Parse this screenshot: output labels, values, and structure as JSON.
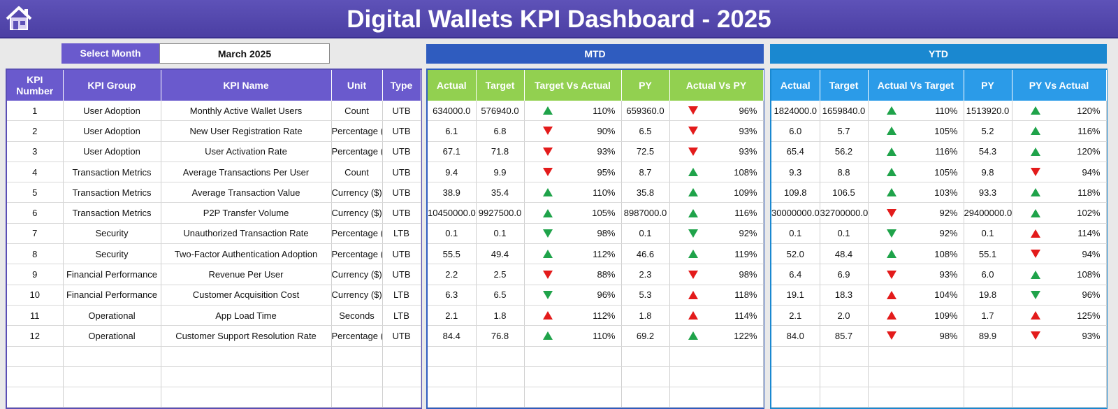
{
  "header": {
    "title": "Digital Wallets KPI Dashboard - 2025"
  },
  "selector": {
    "label": "Select Month",
    "value": "March 2025"
  },
  "sections": {
    "mtd": "MTD",
    "ytd": "YTD"
  },
  "kpi_table": {
    "columns": [
      "KPI Number",
      "KPI Group",
      "KPI Name",
      "Unit",
      "Type"
    ],
    "rows": [
      [
        1,
        "User Adoption",
        "Monthly Active Wallet Users",
        "Count",
        "UTB"
      ],
      [
        2,
        "User Adoption",
        "New User Registration Rate",
        "Percentage (%)",
        "UTB"
      ],
      [
        3,
        "User Adoption",
        "User Activation Rate",
        "Percentage (%)",
        "UTB"
      ],
      [
        4,
        "Transaction Metrics",
        "Average Transactions Per User",
        "Count",
        "UTB"
      ],
      [
        5,
        "Transaction Metrics",
        "Average Transaction Value",
        "Currency ($)",
        "UTB"
      ],
      [
        6,
        "Transaction Metrics",
        "P2P Transfer Volume",
        "Currency ($)",
        "UTB"
      ],
      [
        7,
        "Security",
        "Unauthorized Transaction Rate",
        "Percentage (%)",
        "LTB"
      ],
      [
        8,
        "Security",
        "Two-Factor Authentication Adoption",
        "Percentage (%)",
        "UTB"
      ],
      [
        9,
        "Financial Performance",
        "Revenue Per User",
        "Currency ($)",
        "UTB"
      ],
      [
        10,
        "Financial Performance",
        "Customer Acquisition Cost",
        "Currency ($)",
        "LTB"
      ],
      [
        11,
        "Operational",
        "App Load Time",
        "Seconds",
        "LTB"
      ],
      [
        12,
        "Operational",
        "Customer Support Resolution Rate",
        "Percentage (%)",
        "UTB"
      ]
    ]
  },
  "mtd_table": {
    "columns": [
      "Actual",
      "Target",
      "Target Vs Actual",
      "PY",
      "Actual Vs PY"
    ],
    "rows": [
      [
        "634000.0",
        "576940.0",
        {
          "arrow": "up",
          "color": "#1fa34a",
          "label": "110%"
        },
        "659360.0",
        {
          "arrow": "down",
          "color": "#e31b1b",
          "label": "96%"
        }
      ],
      [
        "6.1",
        "6.8",
        {
          "arrow": "down",
          "color": "#e31b1b",
          "label": "90%"
        },
        "6.5",
        {
          "arrow": "down",
          "color": "#e31b1b",
          "label": "93%"
        }
      ],
      [
        "67.1",
        "71.8",
        {
          "arrow": "down",
          "color": "#e31b1b",
          "label": "93%"
        },
        "72.5",
        {
          "arrow": "down",
          "color": "#e31b1b",
          "label": "93%"
        }
      ],
      [
        "9.4",
        "9.9",
        {
          "arrow": "down",
          "color": "#e31b1b",
          "label": "95%"
        },
        "8.7",
        {
          "arrow": "up",
          "color": "#1fa34a",
          "label": "108%"
        }
      ],
      [
        "38.9",
        "35.4",
        {
          "arrow": "up",
          "color": "#1fa34a",
          "label": "110%"
        },
        "35.8",
        {
          "arrow": "up",
          "color": "#1fa34a",
          "label": "109%"
        }
      ],
      [
        "10450000.0",
        "9927500.0",
        {
          "arrow": "up",
          "color": "#1fa34a",
          "label": "105%"
        },
        "8987000.0",
        {
          "arrow": "up",
          "color": "#1fa34a",
          "label": "116%"
        }
      ],
      [
        "0.1",
        "0.1",
        {
          "arrow": "down",
          "color": "#1fa34a",
          "label": "98%"
        },
        "0.1",
        {
          "arrow": "down",
          "color": "#1fa34a",
          "label": "92%"
        }
      ],
      [
        "55.5",
        "49.4",
        {
          "arrow": "up",
          "color": "#1fa34a",
          "label": "112%"
        },
        "46.6",
        {
          "arrow": "up",
          "color": "#1fa34a",
          "label": "119%"
        }
      ],
      [
        "2.2",
        "2.5",
        {
          "arrow": "down",
          "color": "#e31b1b",
          "label": "88%"
        },
        "2.3",
        {
          "arrow": "down",
          "color": "#e31b1b",
          "label": "98%"
        }
      ],
      [
        "6.3",
        "6.5",
        {
          "arrow": "down",
          "color": "#1fa34a",
          "label": "96%"
        },
        "5.3",
        {
          "arrow": "up",
          "color": "#e31b1b",
          "label": "118%"
        }
      ],
      [
        "2.1",
        "1.8",
        {
          "arrow": "up",
          "color": "#e31b1b",
          "label": "112%"
        },
        "1.8",
        {
          "arrow": "up",
          "color": "#e31b1b",
          "label": "114%"
        }
      ],
      [
        "84.4",
        "76.8",
        {
          "arrow": "up",
          "color": "#1fa34a",
          "label": "110%"
        },
        "69.2",
        {
          "arrow": "up",
          "color": "#1fa34a",
          "label": "122%"
        }
      ]
    ]
  },
  "ytd_table": {
    "columns": [
      "Actual",
      "Target",
      "Actual Vs Target",
      "PY",
      "PY Vs Actual"
    ],
    "rows": [
      [
        "1824000.0",
        "1659840.0",
        {
          "arrow": "up",
          "color": "#1fa34a",
          "label": "110%"
        },
        "1513920.0",
        {
          "arrow": "up",
          "color": "#1fa34a",
          "label": "120%"
        }
      ],
      [
        "6.0",
        "5.7",
        {
          "arrow": "up",
          "color": "#1fa34a",
          "label": "105%"
        },
        "5.2",
        {
          "arrow": "up",
          "color": "#1fa34a",
          "label": "116%"
        }
      ],
      [
        "65.4",
        "56.2",
        {
          "arrow": "up",
          "color": "#1fa34a",
          "label": "116%"
        },
        "54.3",
        {
          "arrow": "up",
          "color": "#1fa34a",
          "label": "120%"
        }
      ],
      [
        "9.3",
        "8.8",
        {
          "arrow": "up",
          "color": "#1fa34a",
          "label": "105%"
        },
        "9.8",
        {
          "arrow": "down",
          "color": "#e31b1b",
          "label": "94%"
        }
      ],
      [
        "109.8",
        "106.5",
        {
          "arrow": "up",
          "color": "#1fa34a",
          "label": "103%"
        },
        "93.3",
        {
          "arrow": "up",
          "color": "#1fa34a",
          "label": "118%"
        }
      ],
      [
        "30000000.0",
        "32700000.0",
        {
          "arrow": "down",
          "color": "#e31b1b",
          "label": "92%"
        },
        "29400000.0",
        {
          "arrow": "up",
          "color": "#1fa34a",
          "label": "102%"
        }
      ],
      [
        "0.1",
        "0.1",
        {
          "arrow": "down",
          "color": "#1fa34a",
          "label": "92%"
        },
        "0.1",
        {
          "arrow": "up",
          "color": "#e31b1b",
          "label": "114%"
        }
      ],
      [
        "52.0",
        "48.4",
        {
          "arrow": "up",
          "color": "#1fa34a",
          "label": "108%"
        },
        "55.1",
        {
          "arrow": "down",
          "color": "#e31b1b",
          "label": "94%"
        }
      ],
      [
        "6.4",
        "6.9",
        {
          "arrow": "down",
          "color": "#e31b1b",
          "label": "93%"
        },
        "6.0",
        {
          "arrow": "up",
          "color": "#1fa34a",
          "label": "108%"
        }
      ],
      [
        "19.1",
        "18.3",
        {
          "arrow": "up",
          "color": "#e31b1b",
          "label": "104%"
        },
        "19.8",
        {
          "arrow": "down",
          "color": "#1fa34a",
          "label": "96%"
        }
      ],
      [
        "2.1",
        "2.0",
        {
          "arrow": "up",
          "color": "#e31b1b",
          "label": "109%"
        },
        "1.7",
        {
          "arrow": "up",
          "color": "#e31b1b",
          "label": "125%"
        }
      ],
      [
        "84.0",
        "85.7",
        {
          "arrow": "down",
          "color": "#e31b1b",
          "label": "98%"
        },
        "89.9",
        {
          "arrow": "down",
          "color": "#e31b1b",
          "label": "93%"
        }
      ]
    ]
  }
}
